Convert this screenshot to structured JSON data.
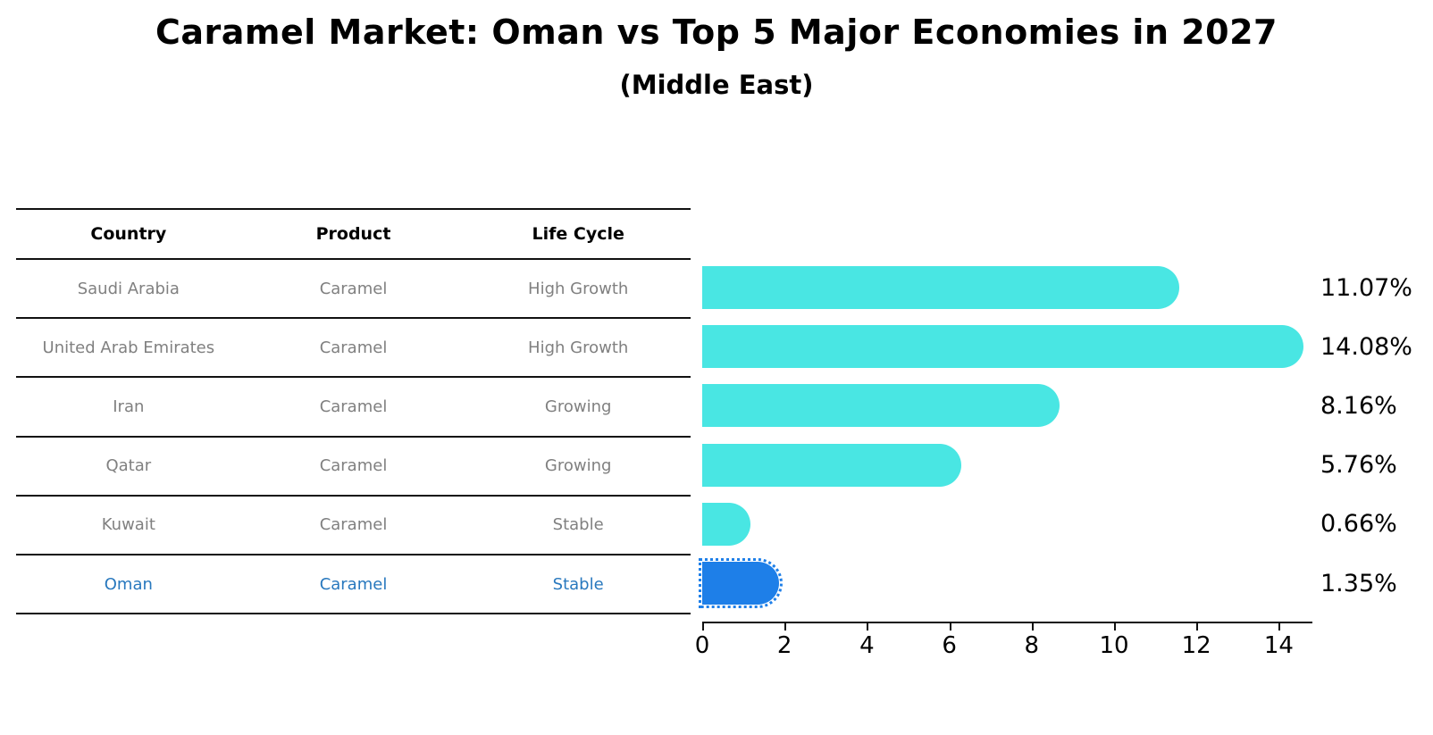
{
  "title": "Caramel Market: Oman vs Top 5 Major Economies in 2027",
  "subtitle": "(Middle East)",
  "table": {
    "headers": [
      "Country",
      "Product",
      "Life Cycle"
    ],
    "rows": [
      {
        "country": "Saudi Arabia",
        "product": "Caramel",
        "life_cycle": "High Growth"
      },
      {
        "country": "United Arab Emirates",
        "product": "Caramel",
        "life_cycle": "High Growth"
      },
      {
        "country": "Iran",
        "product": "Caramel",
        "life_cycle": "Growing"
      },
      {
        "country": "Qatar",
        "product": "Caramel",
        "life_cycle": "Growing"
      },
      {
        "country": "Kuwait",
        "product": "Caramel",
        "life_cycle": "Stable"
      },
      {
        "country": "Oman",
        "product": "Caramel",
        "life_cycle": "Stable"
      }
    ],
    "highlighted_row": "Oman"
  },
  "chart_data": {
    "type": "bar",
    "orientation": "horizontal",
    "title": "Caramel Market: Oman vs Top 5 Major Economies in 2027",
    "subtitle": "(Middle East)",
    "categories": [
      "Saudi Arabia",
      "United Arab Emirates",
      "Iran",
      "Qatar",
      "Kuwait",
      "Oman"
    ],
    "values": [
      11.07,
      14.08,
      8.16,
      5.76,
      0.66,
      1.35
    ],
    "value_labels": [
      "11.07%",
      "14.08%",
      "8.16%",
      "5.76%",
      "0.66%",
      "1.35%"
    ],
    "x_ticks": [
      0,
      2,
      4,
      6,
      8,
      10,
      12,
      14
    ],
    "xlim": [
      0,
      15
    ],
    "grid": false,
    "legend": "none",
    "highlight_category": "Oman",
    "highlight_style": "dotted-outline"
  },
  "colors": {
    "bar": "#49E6E3",
    "highlight_bar": "#1E7FE8",
    "highlight_text": "#2878BE",
    "row_text": "#808080",
    "axis": "#111111"
  }
}
